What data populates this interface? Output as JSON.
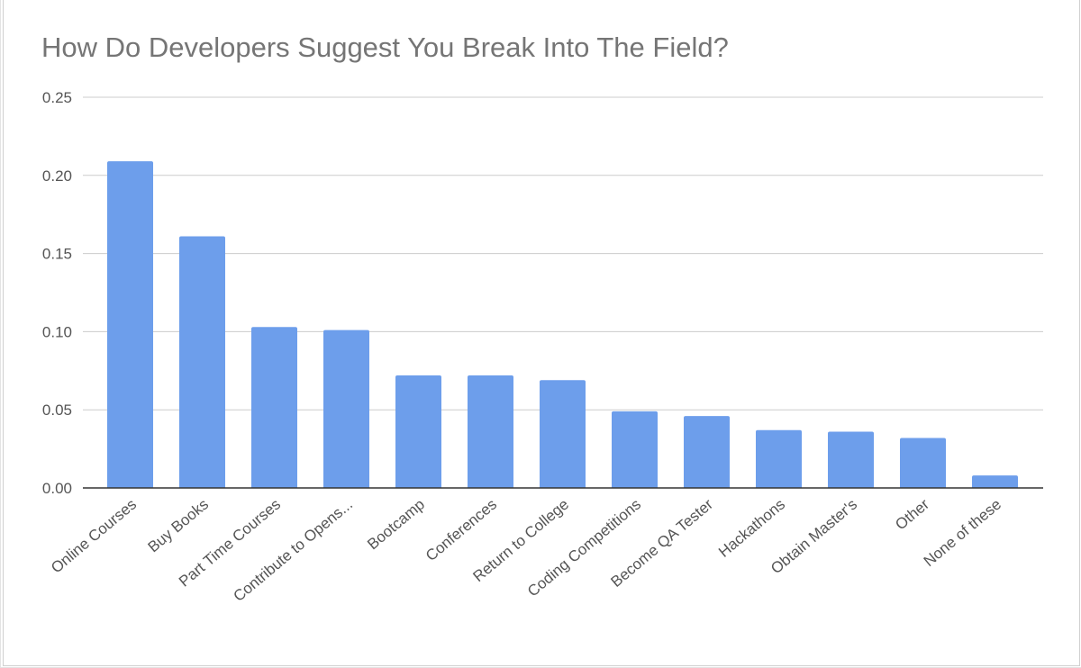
{
  "chart_data": {
    "type": "bar",
    "title": "How Do Developers Suggest You Break Into The Field?",
    "xlabel": "",
    "ylabel": "",
    "ylim": [
      0,
      0.25
    ],
    "yticks": [
      "0.00",
      "0.05",
      "0.10",
      "0.15",
      "0.20",
      "0.25"
    ],
    "categories": [
      "Online Courses",
      "Buy Books",
      "Part Time Courses",
      "Contribute to Opens...",
      "Bootcamp",
      "Conferences",
      "Return to College",
      "Coding Competitions",
      "Become QA Tester",
      "Hackathons",
      "Obtain Master's",
      "Other",
      "None of these"
    ],
    "values": [
      0.209,
      0.161,
      0.103,
      0.101,
      0.072,
      0.072,
      0.069,
      0.049,
      0.046,
      0.037,
      0.036,
      0.032,
      0.008
    ],
    "bar_color": "#6d9eeb",
    "grid": true,
    "legend": "none"
  }
}
